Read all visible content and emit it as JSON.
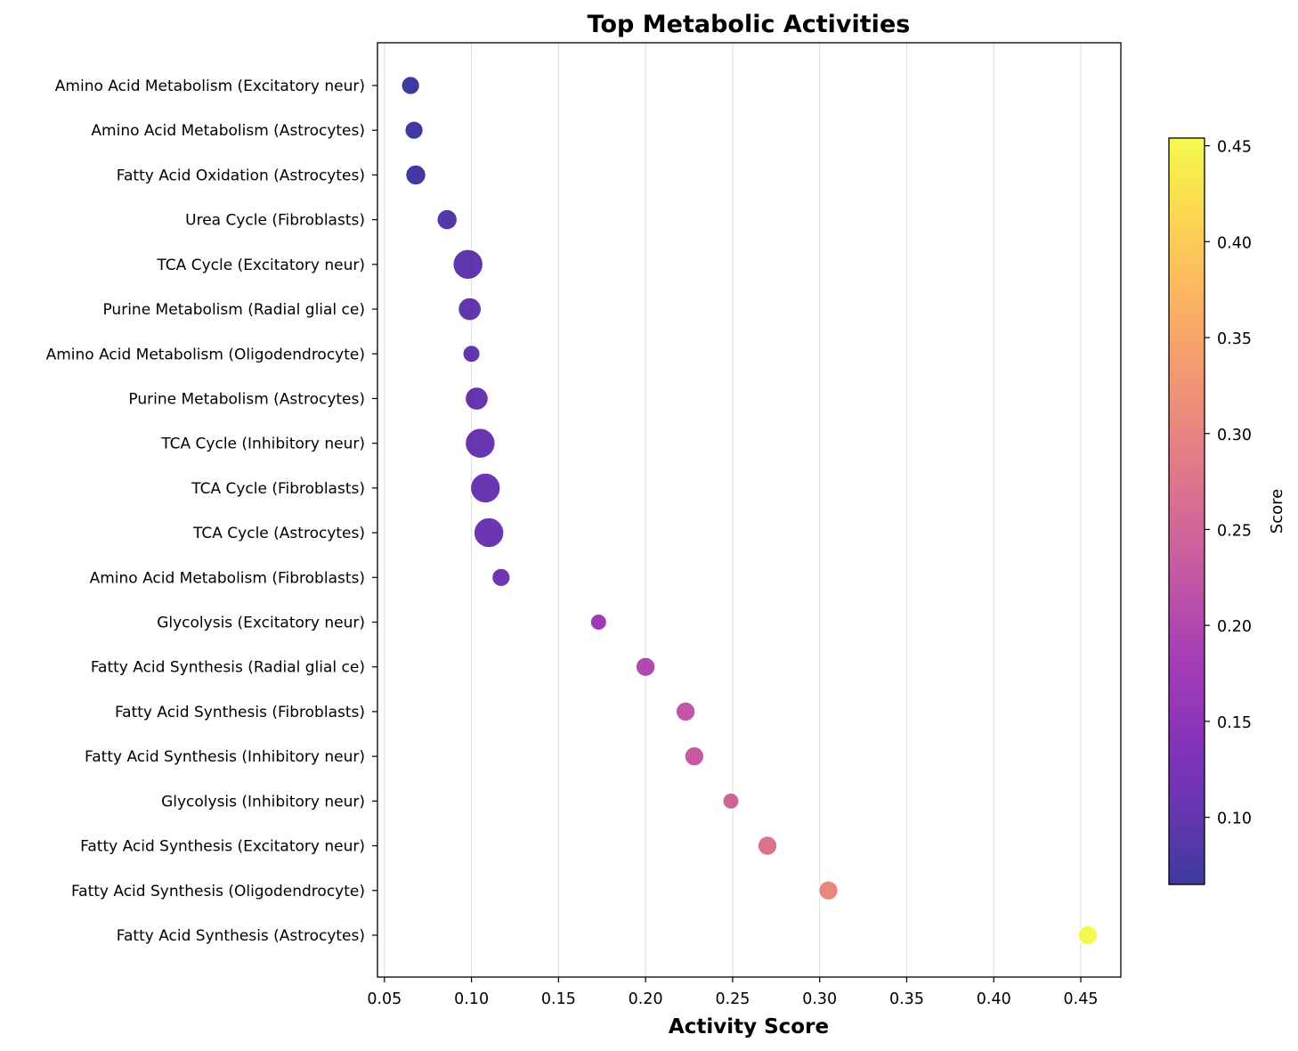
{
  "chart_data": {
    "type": "scatter",
    "title": "Top Metabolic Activities",
    "xlabel": "Activity Score",
    "ylabel": "",
    "xlim": [
      0.046,
      0.473
    ],
    "xticks": [
      0.05,
      0.1,
      0.15,
      0.2,
      0.25,
      0.3,
      0.35,
      0.4,
      0.45
    ],
    "xtick_labels": [
      "0.05",
      "0.10",
      "0.15",
      "0.20",
      "0.25",
      "0.30",
      "0.35",
      "0.40",
      "0.45"
    ],
    "grid": "vertical",
    "colormap": "plasma",
    "colorbar": {
      "label": "Score",
      "range": [
        0.065,
        0.454
      ],
      "ticks": [
        0.1,
        0.15,
        0.2,
        0.25,
        0.3,
        0.35,
        0.4,
        0.45
      ],
      "tick_labels": [
        "0.10",
        "0.15",
        "0.20",
        "0.25",
        "0.30",
        "0.35",
        "0.40",
        "0.45"
      ]
    },
    "categories": [
      "Amino Acid Metabolism (Excitatory neur)",
      "Amino Acid Metabolism (Astrocytes)",
      "Fatty Acid Oxidation (Astrocytes)",
      "Urea Cycle (Fibroblasts)",
      "TCA Cycle (Excitatory neur)",
      "Purine Metabolism (Radial glial ce)",
      "Amino Acid Metabolism (Oligodendrocyte)",
      "Purine Metabolism (Astrocytes)",
      "TCA Cycle (Inhibitory neur)",
      "TCA Cycle (Fibroblasts)",
      "TCA Cycle (Astrocytes)",
      "Amino Acid Metabolism (Fibroblasts)",
      "Glycolysis (Excitatory neur)",
      "Fatty Acid Synthesis (Radial glial ce)",
      "Fatty Acid Synthesis (Fibroblasts)",
      "Fatty Acid Synthesis (Inhibitory neur)",
      "Glycolysis (Inhibitory neur)",
      "Fatty Acid Synthesis (Excitatory neur)",
      "Fatty Acid Synthesis (Oligodendrocyte)",
      "Fatty Acid Synthesis (Astrocytes)"
    ],
    "values": [
      0.065,
      0.067,
      0.068,
      0.086,
      0.098,
      0.099,
      0.1,
      0.103,
      0.105,
      0.108,
      0.11,
      0.117,
      0.173,
      0.2,
      0.223,
      0.228,
      0.249,
      0.27,
      0.305,
      0.454
    ],
    "marker_size_relative": [
      0.4,
      0.4,
      0.5,
      0.5,
      1.0,
      0.65,
      0.35,
      0.65,
      1.0,
      1.0,
      1.0,
      0.4,
      0.3,
      0.45,
      0.45,
      0.45,
      0.3,
      0.45,
      0.45,
      0.45
    ]
  }
}
